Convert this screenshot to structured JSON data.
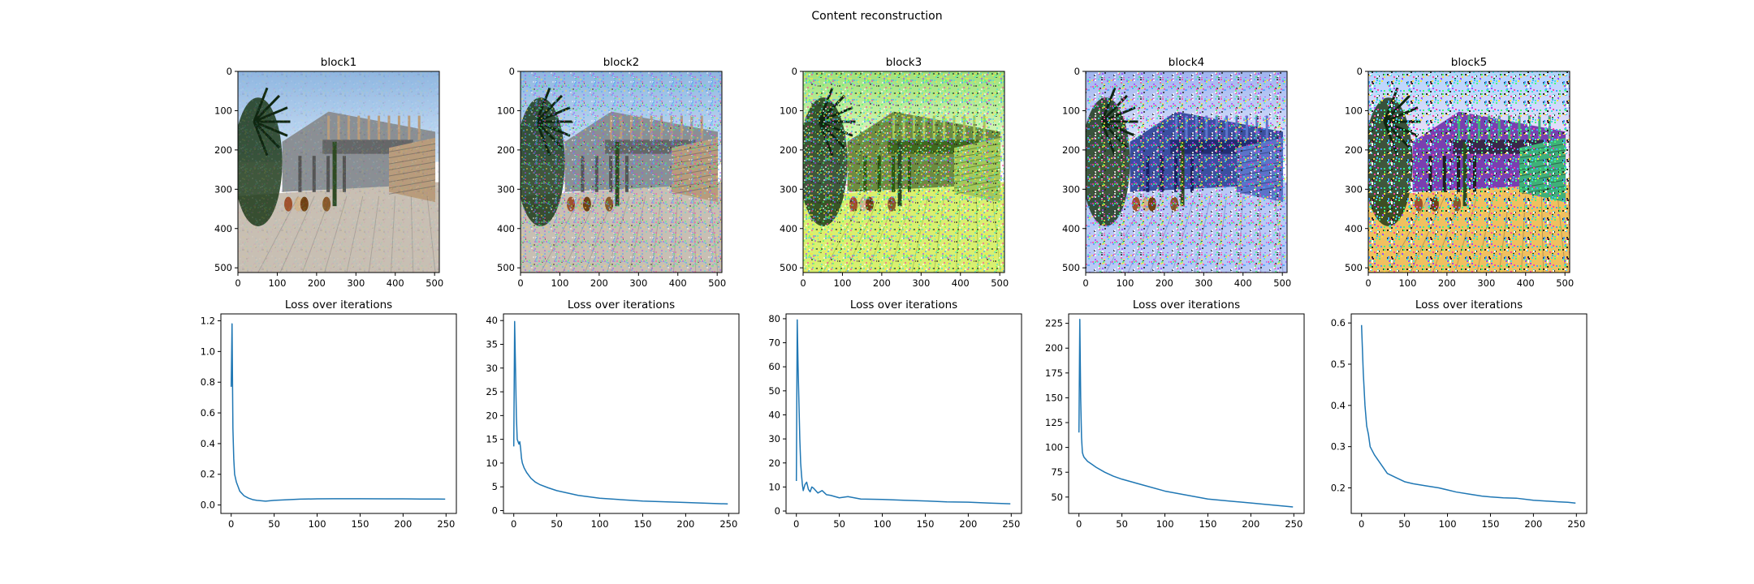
{
  "figure": {
    "title": "Content reconstruction"
  },
  "colors": {
    "line": "#1f77b4",
    "axes": "#000000",
    "background": "#ffffff"
  },
  "image_panels": [
    {
      "title": "block1",
      "description": "reconstructed photo of a courtyard with a modern wooden building and palm trees; nearly identical to original",
      "xticks": [
        0,
        100,
        200,
        300,
        400,
        500
      ],
      "yticks": [
        0,
        100,
        200,
        300,
        400,
        500
      ],
      "noise_level": 0.08,
      "palette": "photo"
    },
    {
      "title": "block2",
      "description": "courtyard photo with heavy colored pixel noise",
      "xticks": [
        0,
        100,
        200,
        300,
        400,
        500
      ],
      "yticks": [
        0,
        100,
        200,
        300,
        400,
        500
      ],
      "noise_level": 0.45,
      "palette": "photo"
    },
    {
      "title": "block3",
      "description": "courtyard photo with strong green/yellow tinted noise",
      "xticks": [
        0,
        100,
        200,
        300,
        400,
        500
      ],
      "yticks": [
        0,
        100,
        200,
        300,
        400,
        500
      ],
      "noise_level": 0.6,
      "palette": "green"
    },
    {
      "title": "block4",
      "description": "courtyard structure with blue/white striated texture",
      "xticks": [
        0,
        100,
        200,
        300,
        400,
        500
      ],
      "yticks": [
        0,
        100,
        200,
        300,
        400,
        500
      ],
      "noise_level": 0.75,
      "palette": "blue"
    },
    {
      "title": "block5",
      "description": "abstract colorful edge patterns loosely following building lines",
      "xticks": [
        0,
        100,
        200,
        300,
        400,
        500
      ],
      "yticks": [
        0,
        100,
        200,
        300,
        400,
        500
      ],
      "noise_level": 0.95,
      "palette": "rainbow"
    }
  ],
  "chart_data": [
    {
      "type": "line",
      "title": "Loss over iterations",
      "xlim": [
        -12,
        262
      ],
      "ylim": [
        -0.055,
        1.245
      ],
      "xticks": [
        0,
        50,
        100,
        150,
        200,
        250
      ],
      "yticks": [
        0.0,
        0.2,
        0.4,
        0.6,
        0.8,
        1.0,
        1.2
      ],
      "ytick_labels": [
        "0.0",
        "0.2",
        "0.4",
        "0.6",
        "0.8",
        "1.0",
        "1.2"
      ],
      "x": [
        0,
        1,
        2,
        3,
        4,
        6,
        8,
        10,
        15,
        20,
        25,
        30,
        40,
        50,
        60,
        80,
        100,
        120,
        150,
        180,
        200,
        220,
        240,
        249
      ],
      "y": [
        0.77,
        1.18,
        0.5,
        0.3,
        0.2,
        0.15,
        0.12,
        0.09,
        0.06,
        0.045,
        0.035,
        0.03,
        0.025,
        0.03,
        0.033,
        0.038,
        0.04,
        0.041,
        0.041,
        0.04,
        0.04,
        0.039,
        0.039,
        0.038
      ]
    },
    {
      "type": "line",
      "title": "Loss over iterations",
      "xlim": [
        -12,
        262
      ],
      "ylim": [
        -0.6,
        41.4
      ],
      "xticks": [
        0,
        50,
        100,
        150,
        200,
        250
      ],
      "yticks": [
        0,
        5,
        10,
        15,
        20,
        25,
        30,
        35,
        40
      ],
      "ytick_labels": [
        "0",
        "5",
        "10",
        "15",
        "20",
        "25",
        "30",
        "35",
        "40"
      ],
      "x": [
        0,
        1,
        2,
        3,
        4,
        5,
        6,
        7,
        8,
        9,
        10,
        12,
        15,
        20,
        25,
        30,
        40,
        50,
        75,
        100,
        150,
        200,
        249
      ],
      "y": [
        13.5,
        39.8,
        30,
        20,
        15,
        14.5,
        14,
        14.5,
        13,
        11,
        10,
        9,
        8,
        6.8,
        6,
        5.5,
        4.8,
        4.2,
        3.2,
        2.6,
        2.0,
        1.7,
        1.4
      ]
    },
    {
      "type": "line",
      "title": "Loss over iterations",
      "xlim": [
        -12,
        262
      ],
      "ylim": [
        -1.0,
        82.0
      ],
      "xticks": [
        0,
        50,
        100,
        150,
        200,
        250
      ],
      "yticks": [
        0,
        10,
        20,
        30,
        40,
        50,
        60,
        70,
        80
      ],
      "ytick_labels": [
        "0",
        "10",
        "20",
        "30",
        "40",
        "50",
        "60",
        "70",
        "80"
      ],
      "x": [
        0,
        1,
        2,
        3,
        4,
        5,
        6,
        7,
        8,
        10,
        12,
        14,
        16,
        18,
        20,
        25,
        30,
        35,
        40,
        50,
        60,
        75,
        100,
        125,
        150,
        175,
        200,
        225,
        249
      ],
      "y": [
        12.5,
        79.5,
        60,
        45,
        30,
        20,
        15,
        11,
        8.5,
        11,
        12,
        9,
        8,
        10,
        9.5,
        7.5,
        8.5,
        6.8,
        6.5,
        5.5,
        6,
        5,
        4.8,
        4.5,
        4.2,
        3.8,
        3.7,
        3.3,
        3.0
      ]
    },
    {
      "type": "line",
      "title": "Loss over iterations",
      "xlim": [
        -12,
        262
      ],
      "ylim": [
        33.5,
        234.5
      ],
      "xticks": [
        0,
        50,
        100,
        150,
        200,
        250
      ],
      "yticks": [
        50,
        75,
        100,
        125,
        150,
        175,
        200,
        225
      ],
      "ytick_labels": [
        "50",
        "75",
        "100",
        "125",
        "150",
        "175",
        "200",
        "225"
      ],
      "x": [
        0,
        1,
        2,
        3,
        4,
        5,
        6,
        8,
        10,
        15,
        20,
        30,
        40,
        50,
        75,
        100,
        125,
        150,
        175,
        200,
        225,
        249
      ],
      "y": [
        115,
        229,
        150,
        110,
        95,
        92,
        90,
        88,
        86,
        83,
        80,
        75,
        71,
        68,
        62,
        56,
        52,
        48,
        46,
        44,
        42,
        40
      ]
    },
    {
      "type": "line",
      "title": "Loss over iterations",
      "xlim": [
        -12,
        262
      ],
      "ylim": [
        0.138,
        0.622
      ],
      "xticks": [
        0,
        50,
        100,
        150,
        200,
        250
      ],
      "yticks": [
        0.2,
        0.3,
        0.4,
        0.5,
        0.6
      ],
      "ytick_labels": [
        "0.2",
        "0.3",
        "0.4",
        "0.5",
        "0.6"
      ],
      "x": [
        0,
        2,
        4,
        6,
        8,
        10,
        15,
        20,
        25,
        30,
        40,
        50,
        60,
        75,
        90,
        100,
        110,
        125,
        140,
        150,
        165,
        180,
        200,
        215,
        230,
        240,
        249
      ],
      "y": [
        0.595,
        0.48,
        0.4,
        0.35,
        0.33,
        0.3,
        0.28,
        0.265,
        0.25,
        0.235,
        0.225,
        0.215,
        0.21,
        0.205,
        0.2,
        0.195,
        0.19,
        0.185,
        0.18,
        0.178,
        0.176,
        0.175,
        0.17,
        0.168,
        0.166,
        0.165,
        0.163
      ]
    }
  ]
}
